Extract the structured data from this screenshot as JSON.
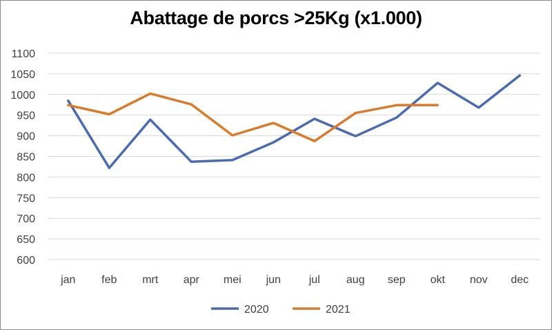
{
  "chart_data": {
    "type": "line",
    "title": "Abattage de porcs >25Kg (x1.000)",
    "categories": [
      "jan",
      "feb",
      "mrt",
      "apr",
      "mei",
      "jun",
      "jul",
      "aug",
      "sep",
      "okt",
      "nov",
      "dec"
    ],
    "series": [
      {
        "name": "2020",
        "color": "#4a6ab2",
        "values": [
          985,
          822,
          939,
          837,
          841,
          884,
          941,
          899,
          944,
          1028,
          968,
          1046
        ]
      },
      {
        "name": "2021",
        "color": "#d97b2a",
        "values": [
          974,
          952,
          1002,
          976,
          901,
          931,
          887,
          955,
          974,
          974,
          null,
          null
        ]
      }
    ],
    "ylim": [
      600,
      1100
    ],
    "yticks": [
      600,
      650,
      700,
      750,
      800,
      850,
      900,
      950,
      1000,
      1050,
      1100
    ],
    "grid": true,
    "legend_position": "bottom"
  }
}
